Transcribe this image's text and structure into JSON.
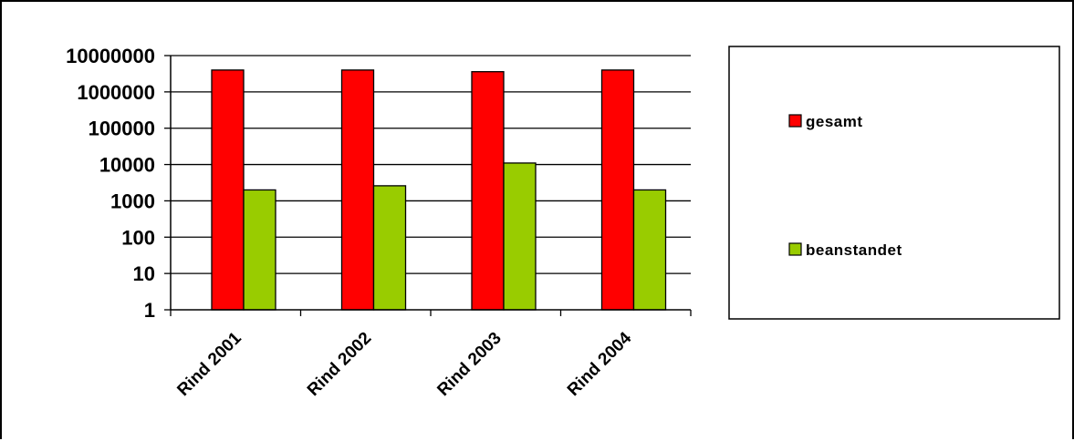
{
  "chart_data": {
    "type": "bar",
    "scale": "log",
    "categories": [
      "Rind 2001",
      "Rind 2002",
      "Rind 2003",
      "Rind 2004"
    ],
    "series": [
      {
        "name": "gesamt",
        "color": "#ff0000",
        "values": [
          4000000,
          4000000,
          3600000,
          4000000
        ]
      },
      {
        "name": "beanstandet",
        "color": "#99cc00",
        "values": [
          2000,
          2600,
          11000,
          2000
        ]
      }
    ],
    "ylim": [
      1,
      10000000
    ],
    "yticks": [
      "1",
      "10",
      "100",
      "1000",
      "10000",
      "100000",
      "1000000",
      "10000000"
    ],
    "grid": true,
    "legend": "right"
  }
}
